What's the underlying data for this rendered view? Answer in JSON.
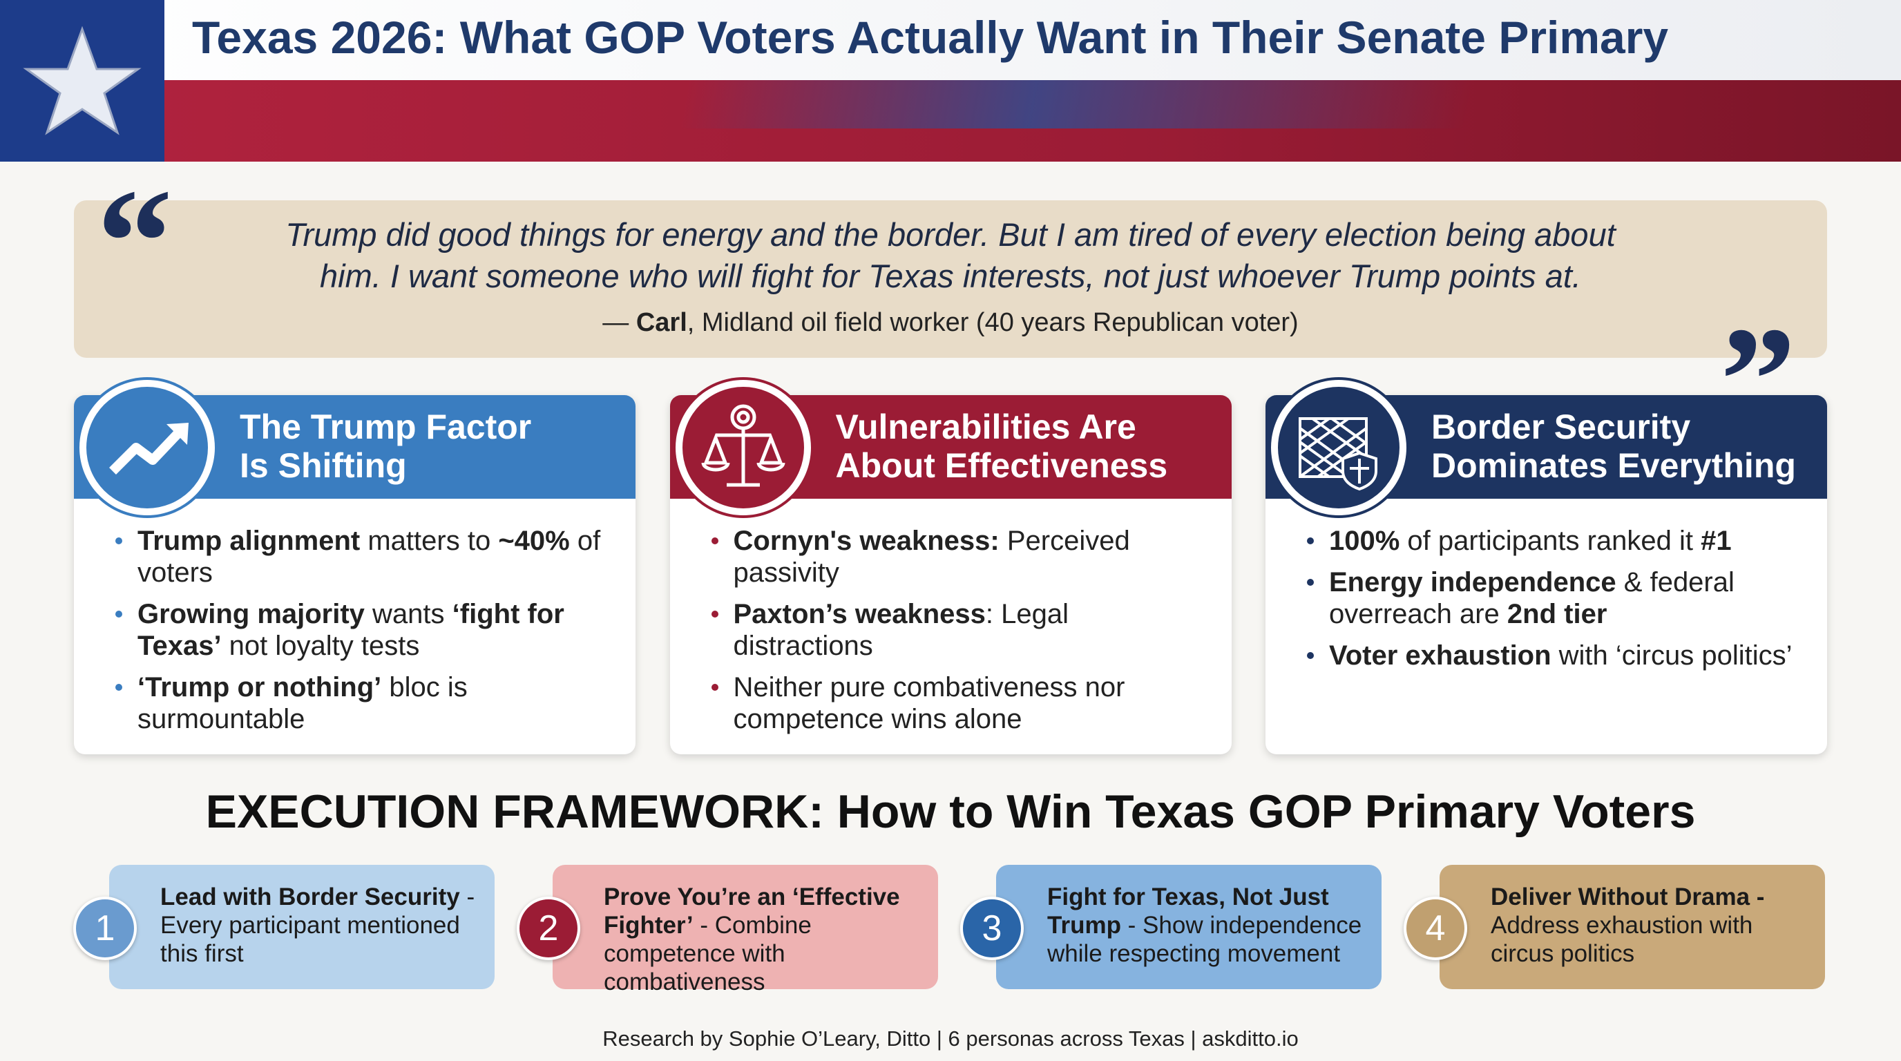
{
  "header": {
    "title": "Texas 2026: What GOP Voters Actually Want in Their Senate Primary"
  },
  "quote": {
    "lines": [
      "Trump did good things for energy and the border. But I am tired of every election being about",
      "him. I want someone who will fight for Texas interests, not just whoever Trump points at."
    ],
    "attribution": [
      {
        "t": "— "
      },
      {
        "b": "Carl"
      },
      {
        "t": ", Midland oil field worker (40 years Republican voter)"
      }
    ]
  },
  "cards": [
    {
      "title": [
        "The Trump Factor",
        "Is Shifting"
      ],
      "bullets": [
        [
          {
            "b": "Trump alignment"
          },
          {
            "t": " matters to "
          },
          {
            "b": "~40%"
          },
          {
            "t": " of voters"
          }
        ],
        [
          {
            "b": "Growing majority"
          },
          {
            "t": " wants "
          },
          {
            "b": "‘fight for Texas’"
          },
          {
            "t": " not loyalty tests"
          }
        ],
        [
          {
            "b": "‘Trump or nothing’"
          },
          {
            "t": " bloc is surmountable"
          }
        ]
      ]
    },
    {
      "title": [
        "Vulnerabilities Are",
        "About Effectiveness"
      ],
      "bullets": [
        [
          {
            "b": "Cornyn's weakness:"
          },
          {
            "t": " Perceived passivity"
          }
        ],
        [
          {
            "b": "Paxton’s weakness"
          },
          {
            "t": ": Legal distractions"
          }
        ],
        [
          {
            "t": "Neither pure combativeness nor competence wins alone"
          }
        ]
      ]
    },
    {
      "title": [
        "Border Security",
        "Dominates Everything"
      ],
      "bullets": [
        [
          {
            "b": "100%"
          },
          {
            "t": " of participants ranked it "
          },
          {
            "b": "#1"
          }
        ],
        [
          {
            "b": "Energy independence"
          },
          {
            "t": " & federal overreach are "
          },
          {
            "b": "2nd tier"
          }
        ],
        [
          {
            "b": "Voter exhaustion"
          },
          {
            "t": " with ‘circus politics’"
          }
        ]
      ]
    }
  ],
  "framework": {
    "title": "EXECUTION FRAMEWORK: How to Win Texas GOP Primary Voters",
    "steps": [
      {
        "number": "1",
        "text": [
          {
            "b": "Lead with Border Security"
          },
          {
            "t": " - Every participant mentioned this first"
          }
        ]
      },
      {
        "number": "2",
        "text": [
          {
            "b": "Prove You’re an ‘Effective Fighter’"
          },
          {
            "t": " - Combine competence with combativeness"
          }
        ]
      },
      {
        "number": "3",
        "text": [
          {
            "b": "Fight for Texas, Not Just Trump"
          },
          {
            "t": " - Show independence while respecting movement"
          }
        ]
      },
      {
        "number": "4",
        "text": [
          {
            "b": "Deliver Without Drama -"
          },
          {
            "t": " Address exhaustion with circus politics"
          }
        ]
      }
    ]
  },
  "footer": "Research by Sophie O’Leary, Ditto | 6 personas across Texas | askditto.io"
}
